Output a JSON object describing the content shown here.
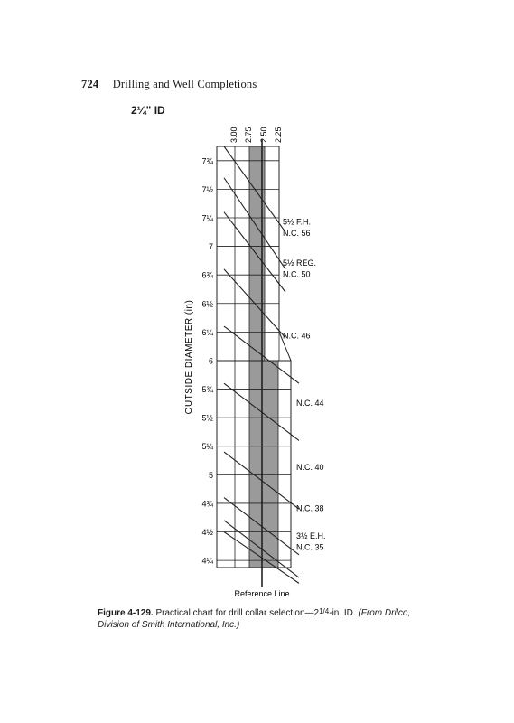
{
  "page": {
    "number": "724",
    "running_title": "Drilling and Well Completions"
  },
  "caption": {
    "figure": "Figure 4-129.",
    "text_pre": "Practical chart for drill collar selection—2",
    "frac": "1/4",
    "text_post": "-in. ID.",
    "source": "(From Drilco, Division of Smith International, Inc.)"
  },
  "chart_data": {
    "type": "line",
    "title": "2¼\" ID",
    "ylabel": "OUTSIDE DIAMETER (in)",
    "xlabel": "",
    "reference_label": "Reference Line",
    "bsr_labels": [
      "3.00",
      "2.75",
      "2.50",
      "2.25"
    ],
    "shaded_band": "2.75 to 2.50",
    "y_ticks": [
      "7¾",
      "7½",
      "7¼",
      "7",
      "6¾",
      "6½",
      "6¼",
      "6",
      "5¾",
      "5½",
      "5¼",
      "5",
      "4¾",
      "4½",
      "4¼"
    ],
    "y_tick_values": [
      7.75,
      7.5,
      7.25,
      7.0,
      6.75,
      6.5,
      6.25,
      6.0,
      5.75,
      5.5,
      5.25,
      5.0,
      4.75,
      4.5,
      4.25
    ],
    "connections": [
      {
        "name": "5½ F.H.",
        "od_start": 7.875,
        "od_end": 7.125
      },
      {
        "name": "N.C. 56",
        "od_start": 7.6,
        "od_end": 6.8
      },
      {
        "name": "5½ REG.",
        "od_start": 7.3,
        "od_end": 6.6
      },
      {
        "name": "N.C. 50",
        "od_start": 6.8,
        "od_end": 6.2
      },
      {
        "name": "N.C. 46",
        "od_start": 6.3,
        "od_end": 5.8
      },
      {
        "name": "N.C. 44",
        "od_start": 5.8,
        "od_end": 5.3
      },
      {
        "name": "N.C. 40",
        "od_start": 5.2,
        "od_end": 4.7
      },
      {
        "name": "N.C. 38",
        "od_start": 4.8,
        "od_end": 4.3
      },
      {
        "name": "3½ E.H.",
        "od_start": 4.6,
        "od_end": 4.1
      },
      {
        "name": "N.C. 35",
        "od_start": 4.5,
        "od_end": 4.05
      }
    ],
    "connection_labels": [
      {
        "text": "5½ F.H.",
        "od": 7.22
      },
      {
        "text": "N.C. 56",
        "od": 7.12
      },
      {
        "text": "5½ REG.",
        "od": 6.86
      },
      {
        "text": "N.C. 50",
        "od": 6.76
      },
      {
        "text": "N.C. 46",
        "od": 6.22
      },
      {
        "text": "N.C. 44",
        "od": 5.63
      },
      {
        "text": "N.C. 40",
        "od": 5.07
      },
      {
        "text": "N.C. 38",
        "od": 4.71
      },
      {
        "text": "3½ E.H.",
        "od": 4.47
      },
      {
        "text": "N.C. 35",
        "od": 4.37
      }
    ]
  }
}
